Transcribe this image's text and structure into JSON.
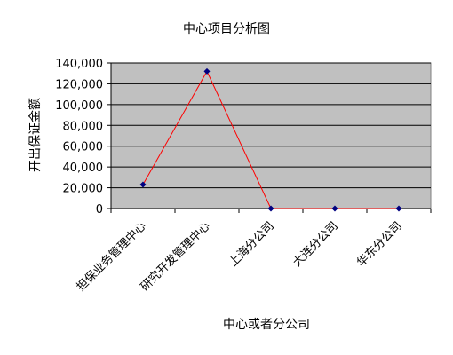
{
  "chart_data": {
    "type": "line",
    "title": "中心项目分析图",
    "xlabel": "中心或者分公司",
    "ylabel": "开出保证金额",
    "categories": [
      "担保业务管理中心",
      "研究开发管理中心",
      "上海分公司",
      "大连分公司",
      "华东分公司"
    ],
    "series": [
      {
        "values": [
          23000,
          132000,
          0,
          0,
          0
        ]
      }
    ],
    "ylim": [
      0,
      140000
    ],
    "yticks": [
      "0",
      "20,000",
      "40,000",
      "60,000",
      "80,000",
      "100,000",
      "120,000",
      "140,000"
    ],
    "grid": true,
    "colors": {
      "plot_background": "#c0c0c0",
      "gridline": "#000000",
      "line": "#ff0000",
      "marker": "#000080"
    }
  }
}
